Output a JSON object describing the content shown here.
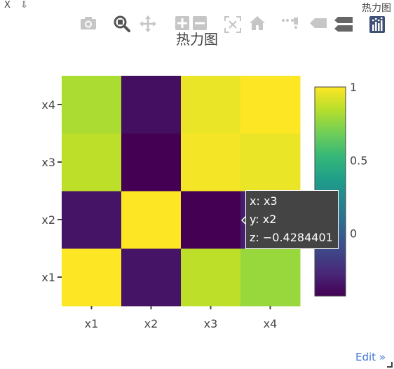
{
  "window": {
    "close_label": "X",
    "pin_label": "⇩",
    "title": "热力图"
  },
  "modebar": {
    "icons": [
      "camera-icon",
      "zoom-icon",
      "pan-icon",
      "zoom-in-icon",
      "zoom-out-icon",
      "autoscale-icon",
      "home-icon",
      "spike-lines-icon",
      "hover-closest-icon",
      "hover-compare-icon",
      "plotly-logo-icon"
    ]
  },
  "chart_data": {
    "type": "heatmap",
    "title": "热力图",
    "x_categories": [
      "x1",
      "x2",
      "x3",
      "x4"
    ],
    "y_categories": [
      "x1",
      "x2",
      "x3",
      "x4"
    ],
    "z": [
      [
        1,
        -0.35,
        0.86,
        0.78
      ],
      [
        -0.35,
        1,
        -0.428,
        -0.32
      ],
      [
        0.86,
        -0.428,
        0.98,
        0.96
      ],
      [
        0.82,
        -0.37,
        0.96,
        1
      ]
    ],
    "zrange": [
      -0.428,
      1
    ],
    "colorscale": "Viridis",
    "colorbar_ticks": [
      "1",
      "0.5",
      "0"
    ],
    "colorbar_tick_values": [
      1,
      0.5,
      0
    ]
  },
  "tooltip": {
    "x_line": "x: x3",
    "y_line": "y: x2",
    "z_line": "z: −0.4284401"
  },
  "footer": {
    "edit_label": "Edit »"
  }
}
